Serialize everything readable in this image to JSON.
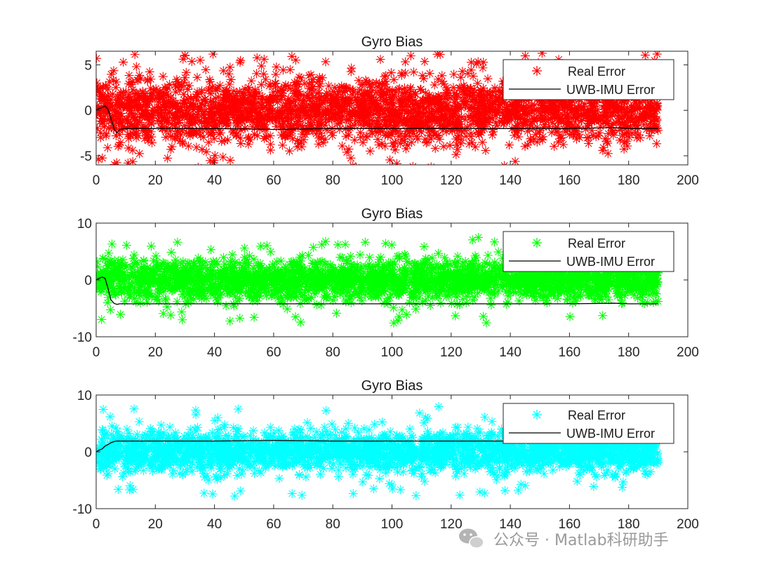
{
  "watermark": {
    "text": "公众号 · Matlab科研助手",
    "icon": "wechat-bubble-icon"
  },
  "chart_data": [
    {
      "type": "scatter",
      "title": "Gyro Bias",
      "xlim": [
        0,
        200
      ],
      "ylim": [
        -6,
        6.5
      ],
      "xticks": [
        0,
        20,
        40,
        60,
        80,
        100,
        120,
        140,
        160,
        180,
        200
      ],
      "yticks": [
        -5,
        0,
        5
      ],
      "ytick_labels": [
        "-5",
        "0",
        "5"
      ],
      "grid": false,
      "legend": {
        "location": "top-right",
        "entries": [
          "Real Error",
          "UWB-IMU  Error"
        ]
      },
      "series": [
        {
          "name": "Real Error",
          "kind": "scatter",
          "marker": "asterisk",
          "color": "#ff0000",
          "x_range": [
            0,
            190
          ],
          "center": 0,
          "spread": 4.5,
          "max_outlier": 6.3
        },
        {
          "name": "UWB-IMU  Error",
          "kind": "line",
          "color": "#000000",
          "x": [
            0,
            1,
            2,
            3,
            4,
            5,
            6,
            7,
            8,
            10,
            20,
            40,
            60,
            80,
            100,
            120,
            140,
            160,
            175,
            180,
            190
          ],
          "y": [
            0,
            0.2,
            0.3,
            0.5,
            0.1,
            -0.9,
            -2.0,
            -2.5,
            -2.1,
            -2.0,
            -2.0,
            -2.0,
            -2.1,
            -2.0,
            -2.0,
            -2.0,
            -2.0,
            -2.0,
            -1.9,
            -2.0,
            -2.0
          ]
        }
      ]
    },
    {
      "type": "scatter",
      "title": "Gyro Bias",
      "xlim": [
        0,
        200
      ],
      "ylim": [
        -10,
        10
      ],
      "xticks": [
        0,
        20,
        40,
        60,
        80,
        100,
        120,
        140,
        160,
        180,
        200
      ],
      "yticks": [
        -10,
        0,
        10
      ],
      "ytick_labels": [
        "-10",
        "0",
        "10"
      ],
      "grid": false,
      "legend": {
        "location": "top-right",
        "entries": [
          "Real Error",
          "UWB-IMU  Error"
        ]
      },
      "series": [
        {
          "name": "Real Error",
          "kind": "scatter",
          "marker": "asterisk",
          "color": "#00ff00",
          "x_range": [
            0,
            190
          ],
          "center": 0,
          "spread": 4.5,
          "max_outlier": 7.7
        },
        {
          "name": "UWB-IMU  Error",
          "kind": "line",
          "color": "#000000",
          "x": [
            0,
            1,
            2,
            3,
            4,
            5,
            6,
            7,
            8,
            10,
            20,
            40,
            60,
            80,
            100,
            120,
            140,
            160,
            175,
            180,
            190
          ],
          "y": [
            0,
            0.3,
            0.5,
            0.3,
            -1.5,
            -3.5,
            -4.1,
            -4.3,
            -4.2,
            -4.2,
            -4.2,
            -4.2,
            -4.2,
            -4.2,
            -4.2,
            -4.2,
            -4.2,
            -4.2,
            -4.1,
            -4.2,
            -4.2
          ]
        }
      ]
    },
    {
      "type": "scatter",
      "title": "Gyro Bias",
      "xlim": [
        0,
        200
      ],
      "ylim": [
        -10,
        10
      ],
      "xticks": [
        0,
        20,
        40,
        60,
        80,
        100,
        120,
        140,
        160,
        180,
        200
      ],
      "yticks": [
        -10,
        0,
        10
      ],
      "ytick_labels": [
        "-10",
        "0",
        "10"
      ],
      "grid": false,
      "legend": {
        "location": "top-right",
        "entries": [
          "Real Error",
          "UWB-IMU  Error"
        ]
      },
      "series": [
        {
          "name": "Real Error",
          "kind": "scatter",
          "marker": "asterisk",
          "color": "#00ffff",
          "x_range": [
            0,
            190
          ],
          "center": 0,
          "spread": 4.5,
          "max_outlier": 8.0
        },
        {
          "name": "UWB-IMU  Error",
          "kind": "line",
          "color": "#000000",
          "x": [
            0,
            1,
            2,
            3,
            4,
            5,
            6,
            7,
            8,
            10,
            20,
            40,
            60,
            80,
            100,
            120,
            140,
            160,
            180,
            190
          ],
          "y": [
            0,
            0.3,
            0.5,
            1.0,
            1.3,
            1.6,
            1.8,
            1.9,
            1.9,
            1.9,
            1.9,
            1.9,
            2.0,
            1.9,
            1.9,
            1.9,
            1.9,
            1.9,
            1.9,
            1.9
          ]
        }
      ]
    }
  ]
}
